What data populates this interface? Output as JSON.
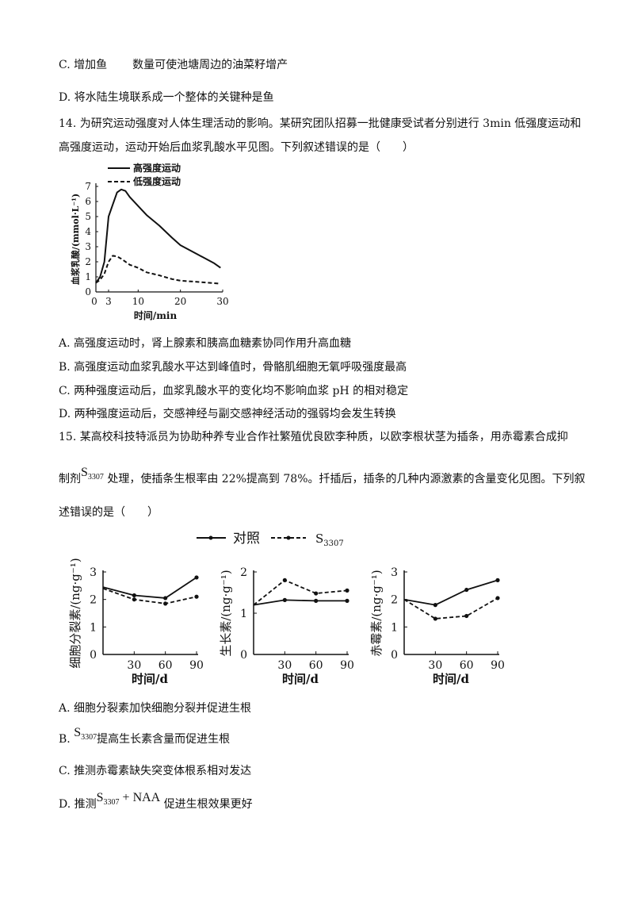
{
  "lines": {
    "c13_a": "C. 增加鱼",
    "c13_b": "数量可使池塘周边的油菜籽增产",
    "d13": "D. 将水陆生境联系成一个整体的关键种是鱼",
    "q14_1": "14. 为研究运动强度对人体生理活动的影响。某研究团队招募一批健康受试者分别进行 3min 低强度运动和",
    "q14_2": "高强度运动，运动开始后血浆乳酸水平见图。下列叙述错误的是（　　）",
    "a14": "A. 高强度运动时，肾上腺素和胰高血糖素协同作用升高血糖",
    "b14": "B. 高强度运动血浆乳酸水平达到峰值时，骨骼肌细胞无氧呼吸强度最高",
    "c14": "C. 两种强度运动后，血浆乳酸水平的变化均不影响血浆 pH 的相对稳定",
    "d14": "D. 两种强度运动后，交感神经与副交感神经活动的强弱均会发生转换",
    "q15_1": "15. 某高校科技特派员为协助种养专业合作社繁殖优良欧李种质，以欧李根状茎为插条，用赤霉素合成抑",
    "q15_2a": "制剂",
    "q15_2b": "处理，使插条生根率由 22%提高到 78%。扦插后，插条的几种内源激素的含量变化见图。下列叙",
    "q15_3": "述错误的是（　　）",
    "a15": "A. 细胞分裂素加快细胞分裂并促进生根",
    "b15_pre": "B.",
    "b15_post": "提高生长素含量而促进生根",
    "c15": "C. 推测赤霉素缺失突变体根系相对发达",
    "d15_pre": "D. 推测",
    "d15_mid": "+ NAA",
    "d15_post": "促进生根效果更好",
    "s_main": "S",
    "s_sub": "3307"
  },
  "chart_data": [
    {
      "type": "line",
      "ylabel": "血浆乳酸/(mmol·L⁻¹)",
      "xlabel": "时间/min",
      "xlim": [
        0,
        30
      ],
      "ylim": [
        0,
        7
      ],
      "xticks": [
        "3",
        "10",
        "20",
        "30"
      ],
      "yticks": [
        "0",
        "1",
        "2",
        "3",
        "4",
        "5",
        "6",
        "7"
      ],
      "series": [
        {
          "name": "高强度运动",
          "style": "solid",
          "x": [
            0,
            1,
            2,
            3,
            4,
            5,
            6,
            7,
            8,
            10,
            12,
            15,
            18,
            20,
            24,
            28,
            29.5
          ],
          "y": [
            0.6,
            1.0,
            2.0,
            5.0,
            5.8,
            6.6,
            6.8,
            6.7,
            6.3,
            5.7,
            5.1,
            4.4,
            3.6,
            3.1,
            2.5,
            1.9,
            1.6
          ]
        },
        {
          "name": "低强度运动",
          "style": "dashed",
          "x": [
            0,
            1,
            2,
            3,
            4,
            5,
            6,
            8,
            10,
            12,
            15,
            18,
            20,
            25,
            29.5
          ],
          "y": [
            0.6,
            0.8,
            1.2,
            2.0,
            2.4,
            2.35,
            2.2,
            1.8,
            1.6,
            1.3,
            1.1,
            0.85,
            0.75,
            0.65,
            0.55
          ]
        }
      ]
    },
    {
      "type": "line",
      "legend": [
        "对照",
        "S3307"
      ],
      "ylabel": "细胞分裂素/(ng·g⁻¹)",
      "xlabel": "时间/d",
      "x": [
        0,
        30,
        60,
        90
      ],
      "ylim": [
        0,
        3
      ],
      "yticks": [
        "0",
        "1",
        "2",
        "3"
      ],
      "xticks": [
        "30",
        "60",
        "90"
      ],
      "series": [
        {
          "name": "对照",
          "style": "solid",
          "values": [
            2.45,
            2.15,
            2.05,
            2.8
          ]
        },
        {
          "name": "S3307",
          "style": "dashed",
          "values": [
            2.4,
            2.0,
            1.85,
            2.1
          ]
        }
      ]
    },
    {
      "type": "line",
      "ylabel": "生长素/(ng·g⁻¹)",
      "xlabel": "时间/d",
      "x": [
        0,
        30,
        60,
        90
      ],
      "ylim": [
        0,
        2
      ],
      "yticks": [
        "0",
        "1",
        "2"
      ],
      "xticks": [
        "30",
        "60",
        "90"
      ],
      "series": [
        {
          "name": "对照",
          "style": "solid",
          "values": [
            1.2,
            1.32,
            1.3,
            1.3
          ]
        },
        {
          "name": "S3307",
          "style": "dashed",
          "values": [
            1.2,
            1.8,
            1.48,
            1.55
          ]
        }
      ]
    },
    {
      "type": "line",
      "ylabel": "赤霉素/(ng·g⁻¹)",
      "xlabel": "时间/d",
      "x": [
        0,
        30,
        60,
        90
      ],
      "ylim": [
        0,
        3
      ],
      "yticks": [
        "0",
        "1",
        "2",
        "3"
      ],
      "xticks": [
        "30",
        "60",
        "90"
      ],
      "series": [
        {
          "name": "对照",
          "style": "solid",
          "values": [
            2.0,
            1.8,
            2.35,
            2.7
          ]
        },
        {
          "name": "S3307",
          "style": "dashed",
          "values": [
            2.0,
            1.3,
            1.4,
            2.05
          ]
        }
      ]
    }
  ]
}
